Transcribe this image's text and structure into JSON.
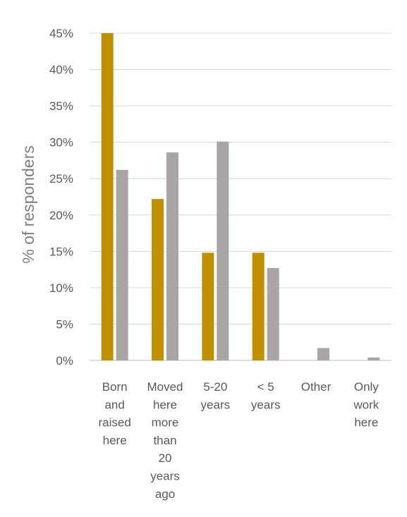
{
  "chart_data": {
    "type": "bar",
    "ylabel": "% of responders",
    "yticks": [
      "0%",
      "5%",
      "10%",
      "15%",
      "20%",
      "25%",
      "30%",
      "35%",
      "40%",
      "45%"
    ],
    "ylim": [
      0,
      45
    ],
    "grid": true,
    "categories": [
      [
        "Born",
        "and",
        "raised",
        "here"
      ],
      [
        "Moved",
        "here",
        "more",
        "than",
        "20",
        "years",
        "ago"
      ],
      [
        "5-20",
        "years"
      ],
      [
        "< 5",
        "years"
      ],
      [
        "Other"
      ],
      [
        "Only",
        "work",
        "here"
      ]
    ],
    "series": [
      {
        "values": [
          45,
          22.2,
          14.8,
          14.8,
          0,
          0
        ],
        "color": "#c09000"
      },
      {
        "values": [
          26.2,
          28.6,
          30.1,
          12.7,
          1.7,
          0.4
        ],
        "color": "#aaa4a4"
      }
    ]
  }
}
